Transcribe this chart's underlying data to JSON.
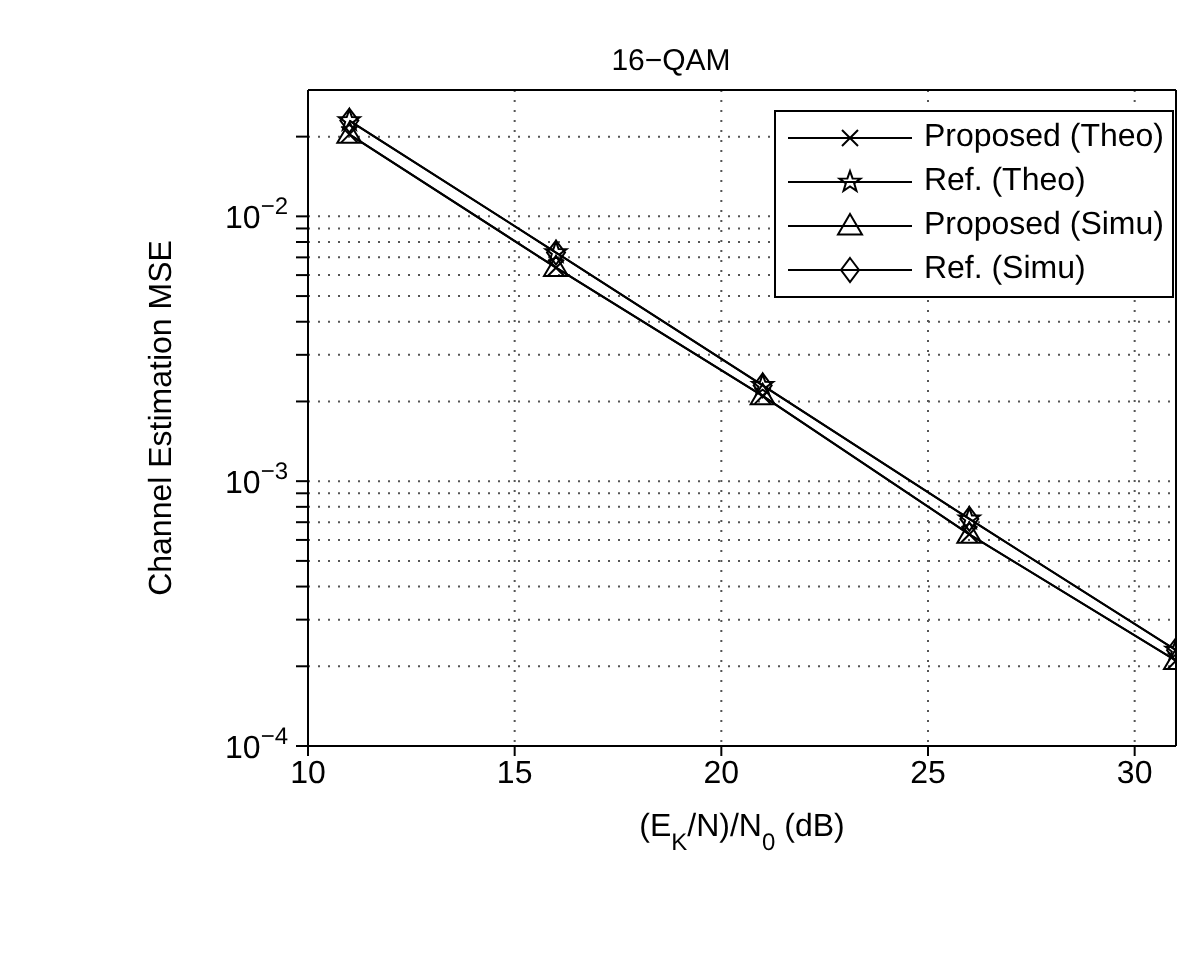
{
  "chart_data": {
    "type": "line",
    "title": "16−QAM",
    "xlabel": "(E$_{K}$/N)/N$_{0}$  (dB)",
    "ylabel": "Channel Estimation MSE",
    "x": [
      11,
      16,
      21,
      26,
      31
    ],
    "series": [
      {
        "name": "Proposed (Theo)",
        "color": "#000000",
        "marker": "cross",
        "values": [
          0.0204,
          0.0064,
          0.0021,
          0.00063,
          0.00021
        ]
      },
      {
        "name": "Ref. (Theo)",
        "color": "#000000",
        "marker": "star",
        "values": [
          0.023,
          0.0073,
          0.0023,
          0.00072,
          0.00023
        ]
      },
      {
        "name": "Proposed (Simu)",
        "color": "#000000",
        "marker": "triangle",
        "values": [
          0.0204,
          0.0064,
          0.0021,
          0.00063,
          0.00021
        ]
      },
      {
        "name": "Ref. (Simu)",
        "color": "#000000",
        "marker": "diamond",
        "values": [
          0.023,
          0.0073,
          0.0023,
          0.00072,
          0.00023
        ]
      }
    ],
    "xlim": [
      10,
      31
    ],
    "xticks": [
      10,
      15,
      20,
      25,
      30
    ],
    "ylim": [
      0.0001,
      0.03
    ],
    "yticks": [
      {
        "value": 0.0001,
        "label": "10$^{−4}$"
      },
      {
        "value": 0.0002,
        "label": null
      },
      {
        "value": 0.0003,
        "label": null
      },
      {
        "value": 0.0004,
        "label": null
      },
      {
        "value": 0.0005,
        "label": null
      },
      {
        "value": 0.0006,
        "label": null
      },
      {
        "value": 0.0007,
        "label": null
      },
      {
        "value": 0.0008,
        "label": null
      },
      {
        "value": 0.0009,
        "label": null
      },
      {
        "value": 0.001,
        "label": "10$^{−3}$"
      },
      {
        "value": 0.002,
        "label": null
      },
      {
        "value": 0.003,
        "label": null
      },
      {
        "value": 0.004,
        "label": null
      },
      {
        "value": 0.005,
        "label": null
      },
      {
        "value": 0.006,
        "label": null
      },
      {
        "value": 0.007,
        "label": null
      },
      {
        "value": 0.008,
        "label": null
      },
      {
        "value": 0.009,
        "label": null
      },
      {
        "value": 0.01,
        "label": "10$^{−2}$"
      },
      {
        "value": 0.02,
        "label": null
      }
    ],
    "log": "y",
    "grid": true,
    "legend": "top right",
    "line_style": "solid"
  }
}
